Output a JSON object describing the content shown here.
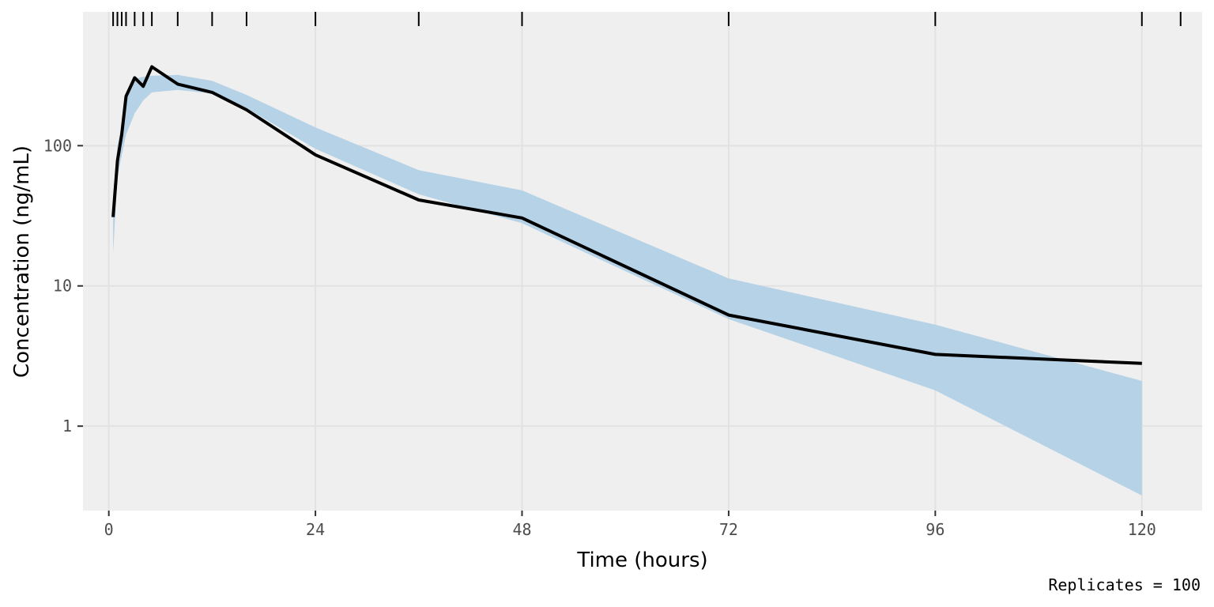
{
  "chart_data": {
    "type": "line",
    "title": "",
    "xlabel": "Time (hours)",
    "ylabel": "Concentration (ng/mL)",
    "caption": "Replicates = 100",
    "x_scale": "linear",
    "y_scale": "log10",
    "xlim": [
      -3,
      127
    ],
    "ylim": [
      0.25,
      900
    ],
    "x_ticks": [
      0,
      24,
      48,
      72,
      96,
      120
    ],
    "x_tick_labels": [
      "0",
      "24",
      "48",
      "72",
      "96",
      "120"
    ],
    "y_ticks": [
      1,
      10,
      100
    ],
    "y_tick_labels": [
      "1",
      "10",
      "100"
    ],
    "grid": true,
    "legend": "none",
    "observation_times": [
      0.5,
      1,
      1.5,
      2,
      3,
      4,
      5,
      8,
      12,
      16,
      24,
      36,
      48,
      72,
      96,
      120,
      124.5
    ],
    "series": [
      {
        "kind": "line",
        "color": "#000000",
        "x": [
          0.5,
          1,
          1.5,
          2,
          3,
          4,
          5,
          8,
          12,
          16,
          24,
          36,
          48,
          72,
          96,
          120
        ],
        "y": [
          31,
          78,
          120,
          225,
          305,
          265,
          365,
          275,
          240,
          180,
          86,
          41,
          30.5,
          6.2,
          3.25,
          2.8
        ]
      },
      {
        "kind": "band",
        "color": "#b6d2e6",
        "x": [
          0.5,
          1,
          1.5,
          2,
          3,
          4,
          5,
          8,
          12,
          16,
          24,
          36,
          48,
          72,
          96,
          120
        ],
        "lower": [
          17,
          60,
          85,
          120,
          170,
          210,
          240,
          250,
          235,
          185,
          95,
          45,
          28,
          5.8,
          1.8,
          0.32
        ],
        "upper": [
          45,
          100,
          140,
          240,
          300,
          310,
          315,
          320,
          290,
          230,
          135,
          67,
          48,
          11.3,
          5.3,
          2.1
        ]
      }
    ]
  }
}
